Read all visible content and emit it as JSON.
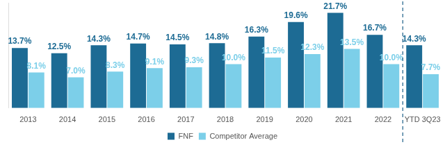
{
  "chart_data": {
    "type": "bar",
    "categories": [
      "2013",
      "2014",
      "2015",
      "2016",
      "2017",
      "2018",
      "2019",
      "2020",
      "2021",
      "2022",
      "YTD 3Q23"
    ],
    "series": [
      {
        "name": "FNF",
        "color": "#1d6b94",
        "values": [
          13.7,
          12.5,
          14.3,
          14.7,
          14.5,
          14.8,
          16.3,
          19.6,
          21.7,
          16.7,
          14.3
        ],
        "value_labels": [
          "13.7%",
          "12.5%",
          "14.3%",
          "14.7%",
          "14.5%",
          "14.8%",
          "16.3%",
          "19.6%",
          "21.7%",
          "16.7%",
          "14.3%"
        ]
      },
      {
        "name": "Competitor Average",
        "color": "#7ccfe9",
        "values": [
          8.1,
          7.0,
          8.3,
          9.1,
          9.3,
          10.0,
          11.5,
          12.3,
          13.5,
          10.0,
          7.7
        ],
        "value_labels": [
          "8.1%",
          "7.0%",
          "8.3%",
          "9.1%",
          "9.3%",
          "10.0%",
          "11.5%",
          "12.3%",
          "13.5%",
          "10.0%",
          "7.7%"
        ]
      }
    ],
    "ylim": [
      0,
      24
    ],
    "grid": false,
    "legend": "bottom",
    "data_labels": true,
    "tick_labels": "x"
  }
}
